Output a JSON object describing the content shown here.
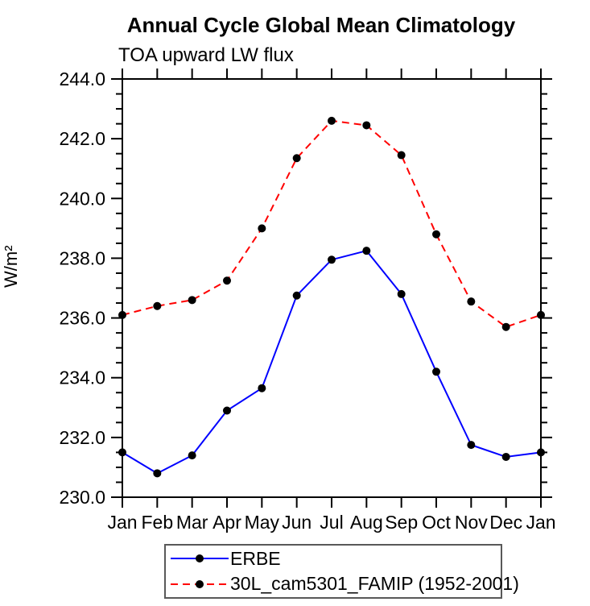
{
  "chart_data": {
    "type": "line",
    "title": "Annual Cycle Global Mean Climatology",
    "subtitle": "TOA upward LW flux",
    "xlabel": "",
    "ylabel": "W/m²",
    "categories": [
      "Jan",
      "Feb",
      "Mar",
      "Apr",
      "May",
      "Jun",
      "Jul",
      "Aug",
      "Sep",
      "Oct",
      "Nov",
      "Dec",
      "Jan"
    ],
    "ylim": [
      230.0,
      244.0
    ],
    "ytick_major_interval": 2.0,
    "ytick_minor_interval": 0.5,
    "ytick_labels": [
      "230.0",
      "232.0",
      "234.0",
      "236.0",
      "238.0",
      "240.0",
      "242.0",
      "244.0"
    ],
    "grid": false,
    "legend_position": "bottom",
    "frame_color": "#000000",
    "marker": {
      "shape": "filled-circle",
      "color": "#000000",
      "radius": 5
    },
    "series": [
      {
        "name": "ERBE",
        "color": "#0000ff",
        "line_style": "solid",
        "values": [
          231.5,
          230.8,
          231.4,
          232.9,
          233.65,
          236.75,
          237.95,
          238.25,
          236.8,
          234.2,
          231.75,
          231.35,
          231.5
        ]
      },
      {
        "name": "30L_cam5301_FAMIP (1952-2001)",
        "color": "#ff0000",
        "line_style": "dashed",
        "values": [
          236.1,
          236.4,
          236.6,
          237.25,
          239.0,
          241.35,
          242.6,
          242.45,
          241.45,
          238.8,
          236.55,
          235.7,
          236.1
        ]
      }
    ]
  }
}
